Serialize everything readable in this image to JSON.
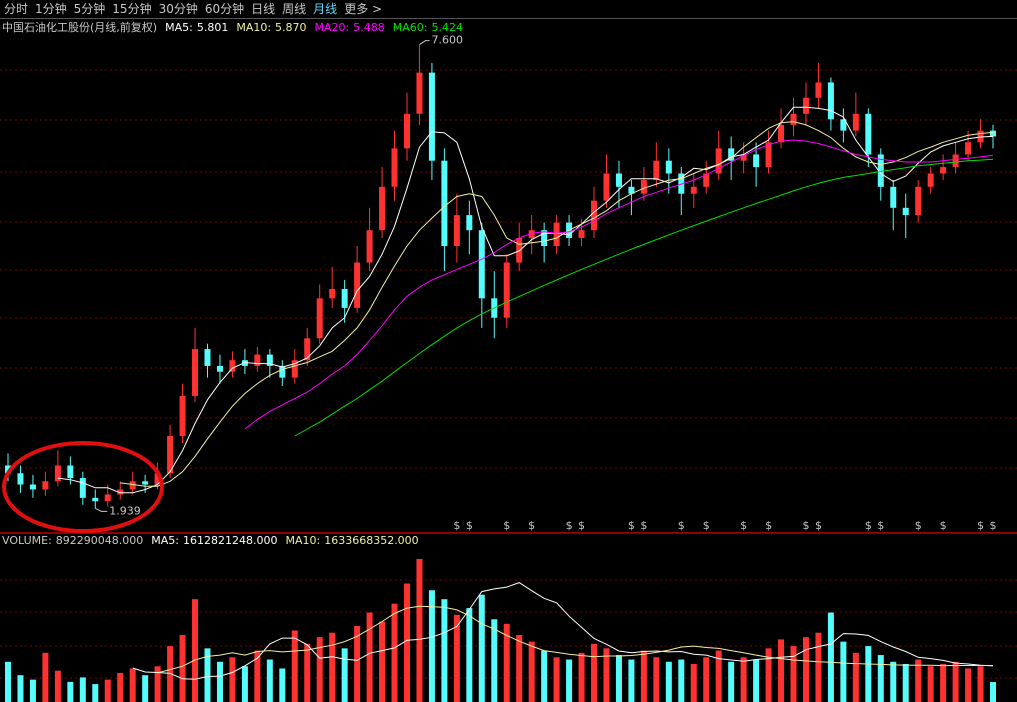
{
  "toolbar": {
    "tabs": [
      {
        "label": "分时"
      },
      {
        "label": "1分钟"
      },
      {
        "label": "5分钟"
      },
      {
        "label": "15分钟"
      },
      {
        "label": "30分钟"
      },
      {
        "label": "60分钟"
      },
      {
        "label": "日线"
      },
      {
        "label": "周线"
      },
      {
        "label": "月线",
        "active": true
      },
      {
        "label": "更多 >"
      }
    ]
  },
  "chart_data": [
    {
      "type": "candlestick",
      "title": "中国石油化工股份(月线,前复权)",
      "log_scale": true,
      "ylim": [
        1.83,
        7.82
      ],
      "up_color": "#ff3232",
      "down_color": "#54fcfc",
      "open": [
        2.2,
        2.15,
        2.08,
        2.05,
        2.1,
        2.2,
        2.12,
        2.0,
        1.98,
        2.02,
        2.05,
        2.1,
        2.08,
        2.15,
        2.4,
        2.7,
        3.1,
        2.95,
        2.9,
        3.0,
        2.95,
        3.05,
        2.95,
        2.85,
        3.0,
        3.2,
        3.6,
        3.7,
        3.5,
        4.0,
        4.4,
        5.0,
        5.6,
        6.2,
        7.0,
        5.4,
        4.2,
        4.6,
        4.4,
        3.6,
        3.4,
        4.0,
        4.3,
        4.4,
        4.2,
        4.5,
        4.3,
        4.4,
        4.8,
        5.2,
        5.0,
        4.9,
        5.1,
        5.4,
        5.2,
        4.9,
        5.0,
        5.2,
        5.6,
        5.4,
        5.5,
        5.3,
        5.7,
        6.0,
        6.2,
        6.5,
        6.8,
        6.1,
        5.9,
        6.2,
        5.5,
        5.0,
        4.7,
        4.6,
        5.0,
        5.2,
        5.3,
        5.5,
        5.7,
        5.9
      ],
      "high": [
        2.28,
        2.2,
        2.14,
        2.16,
        2.3,
        2.26,
        2.16,
        2.05,
        2.08,
        2.1,
        2.16,
        2.14,
        2.22,
        2.48,
        2.8,
        3.3,
        3.15,
        3.05,
        3.08,
        3.1,
        3.12,
        3.1,
        3.0,
        3.1,
        3.3,
        3.75,
        3.95,
        3.8,
        4.2,
        4.7,
        5.3,
        5.9,
        6.6,
        7.6,
        7.2,
        5.6,
        4.9,
        4.8,
        4.5,
        3.9,
        4.1,
        4.5,
        4.6,
        4.5,
        4.6,
        4.6,
        4.55,
        5.0,
        5.5,
        5.4,
        5.1,
        5.3,
        5.7,
        5.6,
        5.3,
        5.2,
        5.4,
        5.9,
        5.8,
        5.7,
        5.7,
        5.9,
        6.3,
        6.5,
        6.8,
        7.2,
        6.9,
        6.3,
        6.6,
        6.3,
        5.6,
        5.1,
        4.9,
        5.1,
        5.3,
        5.5,
        5.7,
        5.9,
        6.1,
        6.0
      ],
      "low": [
        2.1,
        2.03,
        2.0,
        2.01,
        2.07,
        2.08,
        1.96,
        1.939,
        1.95,
        1.99,
        2.02,
        2.03,
        2.05,
        2.12,
        2.35,
        2.65,
        2.85,
        2.8,
        2.85,
        2.88,
        2.9,
        2.85,
        2.78,
        2.8,
        2.95,
        3.15,
        3.5,
        3.35,
        3.45,
        3.9,
        4.3,
        4.8,
        5.4,
        6.0,
        5.1,
        3.9,
        4.0,
        4.1,
        3.3,
        3.2,
        3.3,
        3.9,
        4.1,
        4.0,
        4.1,
        4.2,
        4.2,
        4.3,
        4.7,
        4.7,
        4.6,
        4.8,
        5.0,
        4.9,
        4.6,
        4.7,
        4.9,
        5.1,
        5.1,
        5.2,
        5.0,
        5.2,
        5.6,
        5.8,
        6.0,
        6.3,
        5.9,
        5.7,
        5.8,
        5.3,
        4.8,
        4.4,
        4.3,
        4.5,
        4.9,
        5.1,
        5.2,
        5.4,
        5.6,
        5.6
      ],
      "close": [
        2.15,
        2.08,
        2.05,
        2.1,
        2.2,
        2.12,
        2.0,
        1.98,
        2.02,
        2.05,
        2.1,
        2.08,
        2.15,
        2.4,
        2.7,
        3.1,
        2.95,
        2.9,
        3.0,
        2.95,
        3.05,
        2.95,
        2.85,
        3.0,
        3.2,
        3.6,
        3.7,
        3.5,
        4.0,
        4.4,
        5.0,
        5.6,
        6.2,
        7.0,
        5.4,
        4.2,
        4.6,
        4.4,
        3.6,
        3.4,
        4.0,
        4.3,
        4.4,
        4.2,
        4.5,
        4.3,
        4.4,
        4.8,
        5.2,
        5.0,
        4.9,
        5.1,
        5.4,
        5.2,
        4.9,
        5.0,
        5.2,
        5.6,
        5.4,
        5.5,
        5.3,
        5.7,
        6.0,
        6.2,
        6.5,
        6.8,
        6.1,
        5.9,
        6.2,
        5.5,
        5.0,
        4.7,
        4.6,
        5.0,
        5.2,
        5.3,
        5.5,
        5.7,
        5.9,
        5.8
      ],
      "series": [
        {
          "name": "MA5:",
          "color": "#ffffff",
          "last": 5.801,
          "values": [
            null,
            null,
            null,
            null,
            2.12,
            2.11,
            2.09,
            2.06,
            2.06,
            2.03,
            2.03,
            2.05,
            2.08,
            2.16,
            2.3,
            2.49,
            2.67,
            2.81,
            2.93,
            2.98,
            2.97,
            2.97,
            2.94,
            2.97,
            3.02,
            3.13,
            3.3,
            3.4,
            3.68,
            3.84,
            4.1,
            4.45,
            4.98,
            5.62,
            5.88,
            5.86,
            5.7,
            5.12,
            4.44,
            4.08,
            4.08,
            4.14,
            4.28,
            4.36,
            4.36,
            4.34,
            4.48,
            4.64,
            4.78,
            4.96,
            5.12,
            5.12,
            5.12,
            5.06,
            5.14,
            5.28,
            5.26,
            5.34,
            5.46,
            5.5,
            5.62,
            5.74,
            6.04,
            6.32,
            6.32,
            6.3,
            6.26,
            6.14,
            5.74,
            5.46,
            5.2,
            5.08,
            5.16,
            5.36,
            5.54,
            5.64,
            5.7,
            5.76,
            5.79,
            5.801
          ]
        },
        {
          "name": "MA10:",
          "color": "#f0f0a0",
          "last": {
            "value": 5.87,
            "label": "5.870"
          },
          "values": [
            null,
            null,
            null,
            null,
            null,
            null,
            null,
            null,
            null,
            2.09,
            2.08,
            2.07,
            2.07,
            2.1,
            2.16,
            2.26,
            2.38,
            2.5,
            2.62,
            2.72,
            2.8,
            2.87,
            2.92,
            2.95,
            2.98,
            3.03,
            3.08,
            3.18,
            3.3,
            3.48,
            3.72,
            3.96,
            4.2,
            4.4,
            4.56,
            4.72,
            4.86,
            4.9,
            4.86,
            4.6,
            4.3,
            4.22,
            4.24,
            4.26,
            4.3,
            4.4,
            4.48,
            4.56,
            4.66,
            4.8,
            4.9,
            4.98,
            5.04,
            5.1,
            5.12,
            5.2,
            5.28,
            5.34,
            5.44,
            5.62,
            5.78,
            5.94,
            6.04,
            6.06,
            6.0,
            5.9,
            5.78,
            5.6,
            5.46,
            5.38,
            5.34,
            5.38,
            5.45,
            5.55,
            5.62,
            5.7,
            5.76,
            5.82,
            5.85,
            5.87
          ]
        },
        {
          "name": "MA20:",
          "color": "#ff00ff",
          "last": 5.488,
          "values": [
            null,
            null,
            null,
            null,
            null,
            null,
            null,
            null,
            null,
            null,
            null,
            null,
            null,
            null,
            null,
            null,
            null,
            null,
            null,
            2.45,
            2.52,
            2.58,
            2.63,
            2.68,
            2.73,
            2.8,
            2.88,
            2.95,
            3.05,
            3.18,
            3.32,
            3.48,
            3.62,
            3.72,
            3.8,
            3.86,
            3.92,
            3.98,
            4.04,
            4.12,
            4.22,
            4.3,
            4.36,
            4.38,
            4.36,
            4.38,
            4.44,
            4.52,
            4.62,
            4.7,
            4.78,
            4.86,
            4.92,
            4.98,
            5.04,
            5.1,
            5.18,
            5.28,
            5.38,
            5.48,
            5.58,
            5.66,
            5.72,
            5.74,
            5.72,
            5.68,
            5.62,
            5.56,
            5.5,
            5.46,
            5.42,
            5.4,
            5.38,
            5.38,
            5.38,
            5.4,
            5.42,
            5.44,
            5.46,
            5.488
          ]
        },
        {
          "name": "MA60:",
          "color": "#00e000",
          "last": 5.424,
          "values": [
            null,
            null,
            null,
            null,
            null,
            null,
            null,
            null,
            null,
            null,
            null,
            null,
            null,
            null,
            null,
            null,
            null,
            null,
            null,
            null,
            null,
            null,
            null,
            2.4,
            2.45,
            2.5,
            2.56,
            2.62,
            2.68,
            2.75,
            2.82,
            2.9,
            2.98,
            3.06,
            3.14,
            3.22,
            3.3,
            3.37,
            3.44,
            3.5,
            3.56,
            3.62,
            3.68,
            3.74,
            3.8,
            3.86,
            3.92,
            3.98,
            4.04,
            4.1,
            4.16,
            4.22,
            4.28,
            4.34,
            4.4,
            4.46,
            4.52,
            4.58,
            4.64,
            4.7,
            4.76,
            4.82,
            4.88,
            4.94,
            5.0,
            5.05,
            5.1,
            5.14,
            5.17,
            5.2,
            5.23,
            5.26,
            5.29,
            5.32,
            5.34,
            5.36,
            5.38,
            5.4,
            5.41,
            5.424
          ]
        }
      ],
      "annotations": {
        "high": {
          "value": 7.6,
          "label": "7.600"
        },
        "low": {
          "value": 1.939,
          "label": "1.939"
        }
      },
      "dividend_marks": [
        null,
        null,
        null,
        null,
        null,
        null,
        null,
        null,
        null,
        null,
        null,
        null,
        null,
        null,
        null,
        null,
        null,
        null,
        null,
        null,
        null,
        null,
        null,
        null,
        null,
        null,
        null,
        null,
        null,
        null,
        null,
        null,
        null,
        null,
        null,
        null,
        "$",
        "$",
        null,
        null,
        "$",
        null,
        "$",
        null,
        null,
        "$",
        "$",
        null,
        null,
        null,
        "$",
        "$",
        null,
        null,
        "$",
        null,
        "$",
        null,
        null,
        "$",
        null,
        "$",
        null,
        null,
        "$",
        "$",
        null,
        null,
        null,
        "$",
        "$",
        null,
        null,
        "$",
        null,
        "$",
        null,
        null,
        "$",
        "$"
      ]
    },
    {
      "type": "bar",
      "title": "VOLUME:",
      "current": {
        "value": 892290048,
        "label": "892290048.000"
      },
      "ylim": [
        0,
        6800000000.0
      ],
      "up_color": "#ff3232",
      "down_color": "#54fcfc",
      "values": [
        1800000000.0,
        1200000000.0,
        1000000000.0,
        2200000000.0,
        1400000000.0,
        900000000.0,
        1100000000.0,
        800000000.0,
        1000000000.0,
        1300000000.0,
        1500000000.0,
        1200000000.0,
        1600000000.0,
        2500000000.0,
        3000000000.0,
        4600000000.0,
        2400000000.0,
        1800000000.0,
        2000000000.0,
        1600000000.0,
        2300000000.0,
        1900000000.0,
        1500000000.0,
        3200000000.0,
        2600000000.0,
        2900000000.0,
        3100000000.0,
        2400000000.0,
        3400000000.0,
        4000000000.0,
        3600000000.0,
        4400000000.0,
        5300000000.0,
        6400000000.0,
        5000000000.0,
        4600000000.0,
        3900000000.0,
        4200000000.0,
        4800000000.0,
        3700000000.0,
        3500000000.0,
        3000000000.0,
        2700000000.0,
        2300000000.0,
        2000000000.0,
        1900000000.0,
        2200000000.0,
        2600000000.0,
        2400000000.0,
        2100000000.0,
        1900000000.0,
        2300000000.0,
        2000000000.0,
        1800000000.0,
        1900000000.0,
        1700000000.0,
        2000000000.0,
        2300000000.0,
        1800000000.0,
        2000000000.0,
        1900000000.0,
        2400000000.0,
        2800000000.0,
        2500000000.0,
        2900000000.0,
        3100000000.0,
        4000000000.0,
        2700000000.0,
        2200000000.0,
        2500000000.0,
        2100000000.0,
        1800000000.0,
        1700000000.0,
        1900000000.0,
        1600000000.0,
        1700000000.0,
        1800000000.0,
        1500000000.0,
        1600000000.0,
        892290048
      ],
      "series": [
        {
          "name": "MA5:",
          "color": "#ffffff",
          "last": {
            "value": 1612821248,
            "label": "1612821248.000"
          },
          "values": [
            null,
            null,
            null,
            null,
            null,
            null,
            null,
            null,
            null,
            null,
            1520000000.0,
            1340000000.0,
            1320000000.0,
            1280000000.0,
            1040000000.0,
            1020000000.0,
            1140000000.0,
            1160000000.0,
            1320000000.0,
            1620000000.0,
            1960000000.0,
            2600000000.0,
            2860000000.0,
            2860000000.0,
            2560000000.0,
            1960000000.0,
            2020000000.0,
            1920000000.0,
            1860000000.0,
            2180000000.0,
            2300000000.0,
            2420000000.0,
            2760000000.0,
            2800000000.0,
            2900000000.0,
            3100000000.0,
            3380000000.0,
            4140000000.0,
            4940000000.0,
            5060000000.0,
            5140000000.0,
            5340000000.0,
            4980000000.0,
            4640000000.0,
            4440000000.0,
            3840000000.0,
            3340000000.0,
            2840000000.0,
            2580000000.0,
            2280000000.0,
            2200000000.0,
            2260000000.0,
            2280000000.0,
            2240000000.0,
            2260000000.0,
            2140000000.0,
            2100000000.0,
            1940000000.0,
            1880000000.0,
            1820000000.0,
            1900000000.0,
            1940000000.0,
            2000000000.0,
            2040000000.0,
            2340000000.0,
            2480000000.0,
            2600000000.0,
            3060000000.0,
            3040000000.0,
            2980000000.0,
            2700000000.0,
            2460000000.0,
            2260000000.0,
            2000000000.0,
            1940000000.0,
            1860000000.0,
            1740000000.0,
            1700000000.0,
            1640000000.0,
            1612821248
          ]
        },
        {
          "name": "MA10:",
          "color": "#f0f0a0",
          "last": {
            "value": 1633668352,
            "label": "1633668352.000"
          },
          "values": [
            null,
            null,
            null,
            null,
            null,
            null,
            null,
            null,
            null,
            null,
            null,
            null,
            1300000000.0,
            1450000000.0,
            1600000000.0,
            1880000000.0,
            2040000000.0,
            2100000000.0,
            2200000000.0,
            2100000000.0,
            2260000000.0,
            2300000000.0,
            2240000000.0,
            2280000000.0,
            2320000000.0,
            2440000000.0,
            2540000000.0,
            2700000000.0,
            2940000000.0,
            3260000000.0,
            3600000000.0,
            3960000000.0,
            4200000000.0,
            4280000000.0,
            4260000000.0,
            4240000000.0,
            4120000000.0,
            3860000000.0,
            3500000000.0,
            3260000000.0,
            2980000000.0,
            2720000000.0,
            2500000000.0,
            2300000000.0,
            2220000000.0,
            2140000000.0,
            2080000000.0,
            2020000000.0,
            2060000000.0,
            2060000000.0,
            2080000000.0,
            2140000000.0,
            2220000000.0,
            2320000000.0,
            2460000000.0,
            2500000000.0,
            2440000000.0,
            2400000000.0,
            2300000000.0,
            2200000000.0,
            2100000000.0,
            2000000000.0,
            1940000000.0,
            1880000000.0,
            1840000000.0,
            1800000000.0,
            1780000000.0,
            1740000000.0,
            1720000000.0,
            1700000000.0,
            1680000000.0,
            1660000000.0,
            1650000000.0,
            1640000000.0,
            1640000000.0,
            1630000000.0,
            1635000000.0,
            1634000000.0,
            1633000000.0,
            1633668352
          ]
        }
      ]
    }
  ]
}
